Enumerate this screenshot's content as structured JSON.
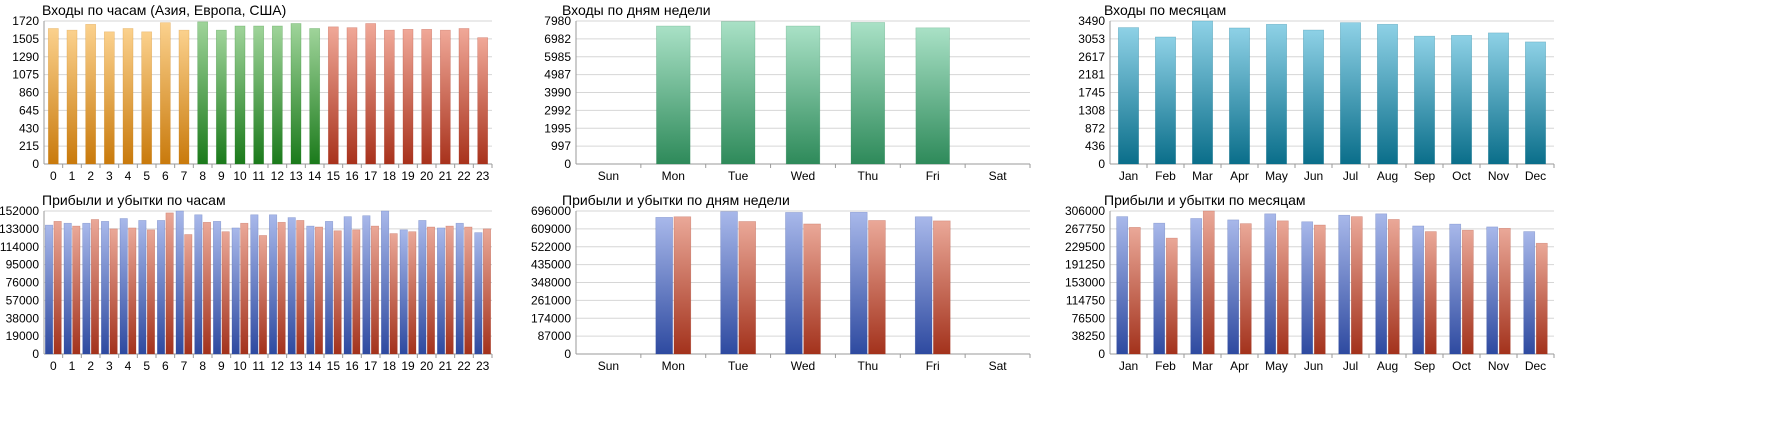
{
  "palette": {
    "orange": [
      "#fbd18d",
      "#c97a0c"
    ],
    "green": [
      "#9fd49a",
      "#1b7a1b"
    ],
    "salmon": [
      "#f0a898",
      "#a8321c"
    ],
    "mint": [
      "#a9e1c6",
      "#2e8a5a"
    ],
    "teal": [
      "#8ed1e6",
      "#0a6e8a"
    ],
    "blue": [
      "#a8b8ea",
      "#2e4aa0"
    ],
    "red": [
      "#eaa898",
      "#a3321c"
    ]
  },
  "chart_data": [
    {
      "id": "hourly-logins",
      "type": "bar",
      "title": "Входы по часам (Азия, Европа, США)",
      "categories": [
        "0",
        "1",
        "2",
        "3",
        "4",
        "5",
        "6",
        "7",
        "8",
        "9",
        "10",
        "11",
        "12",
        "13",
        "14",
        "15",
        "16",
        "17",
        "18",
        "19",
        "20",
        "21",
        "22",
        "23"
      ],
      "series": [
        {
          "values": [
            1630,
            1610,
            1680,
            1590,
            1630,
            1590,
            1700,
            1610,
            1710,
            1610,
            1660,
            1660,
            1660,
            1690,
            1630,
            1650,
            1640,
            1690,
            1610,
            1620,
            1620,
            1610,
            1630,
            1520
          ],
          "colors": [
            "orange",
            "orange",
            "orange",
            "orange",
            "orange",
            "orange",
            "orange",
            "orange",
            "green",
            "green",
            "green",
            "green",
            "green",
            "green",
            "green",
            "salmon",
            "salmon",
            "salmon",
            "salmon",
            "salmon",
            "salmon",
            "salmon",
            "salmon",
            "salmon"
          ]
        }
      ],
      "yticks": [
        "0",
        "215",
        "430",
        "645",
        "860",
        "1075",
        "1290",
        "1505",
        "1720"
      ],
      "ylim": [
        0,
        1720
      ]
    },
    {
      "id": "weekday-logins",
      "type": "bar",
      "title": "Входы по дням недели",
      "categories": [
        "Sun",
        "Mon",
        "Tue",
        "Wed",
        "Thu",
        "Fri",
        "Sat"
      ],
      "series": [
        {
          "values": [
            0,
            7700,
            7950,
            7700,
            7900,
            7600,
            0
          ],
          "colors": [
            "mint"
          ]
        }
      ],
      "yticks": [
        "0",
        "997",
        "1995",
        "2992",
        "3990",
        "4987",
        "5985",
        "6982",
        "7980"
      ],
      "ylim": [
        0,
        7980
      ]
    },
    {
      "id": "monthly-logins",
      "type": "bar",
      "title": "Входы по месяцам",
      "categories": [
        "Jan",
        "Feb",
        "Mar",
        "Apr",
        "May",
        "Jun",
        "Jul",
        "Aug",
        "Sep",
        "Oct",
        "Nov",
        "Dec"
      ],
      "series": [
        {
          "values": [
            3330,
            3100,
            3490,
            3320,
            3410,
            3270,
            3450,
            3410,
            3120,
            3140,
            3200,
            2980
          ],
          "colors": [
            "teal"
          ]
        }
      ],
      "yticks": [
        "0",
        "436",
        "872",
        "1308",
        "1745",
        "2181",
        "2617",
        "3053",
        "3490"
      ],
      "ylim": [
        0,
        3490
      ]
    },
    {
      "id": "hourly-pnl",
      "type": "bar",
      "title": "Прибыли и убытки по часам",
      "categories": [
        "0",
        "1",
        "2",
        "3",
        "4",
        "5",
        "6",
        "7",
        "8",
        "9",
        "10",
        "11",
        "12",
        "13",
        "14",
        "15",
        "16",
        "17",
        "18",
        "19",
        "20",
        "21",
        "22",
        "23"
      ],
      "series": [
        {
          "values": [
            137000,
            139000,
            139000,
            141000,
            144000,
            142000,
            142000,
            152000,
            148000,
            141000,
            134000,
            148000,
            148000,
            145000,
            136000,
            141000,
            146000,
            147000,
            152000,
            132000,
            142000,
            134000,
            139000,
            129000
          ],
          "colors": [
            "blue"
          ]
        },
        {
          "values": [
            141000,
            136000,
            143000,
            133000,
            134000,
            132000,
            150000,
            127000,
            140000,
            130000,
            139000,
            126000,
            140000,
            142000,
            135000,
            131000,
            132000,
            136000,
            128000,
            130000,
            135000,
            136000,
            135000,
            133000
          ],
          "colors": [
            "red"
          ]
        }
      ],
      "yticks": [
        "0",
        "19000",
        "38000",
        "57000",
        "76000",
        "95000",
        "114000",
        "133000",
        "152000"
      ],
      "ylim": [
        0,
        152000
      ]
    },
    {
      "id": "weekday-pnl",
      "type": "bar",
      "title": "Прибыли и убытки по дням недели",
      "categories": [
        "Sun",
        "Mon",
        "Tue",
        "Wed",
        "Thu",
        "Fri",
        "Sat"
      ],
      "series": [
        {
          "values": [
            0,
            665000,
            693000,
            689000,
            690000,
            668000,
            0
          ],
          "colors": [
            "blue"
          ]
        },
        {
          "values": [
            0,
            668000,
            645000,
            633000,
            650000,
            648000,
            0
          ],
          "colors": [
            "red"
          ]
        }
      ],
      "yticks": [
        "0",
        "87000",
        "174000",
        "261000",
        "348000",
        "435000",
        "522000",
        "609000",
        "696000"
      ],
      "ylim": [
        0,
        696000
      ]
    },
    {
      "id": "monthly-pnl",
      "type": "bar",
      "title": "Прибыли и убытки по месяцам",
      "categories": [
        "Jan",
        "Feb",
        "Mar",
        "Apr",
        "May",
        "Jun",
        "Jul",
        "Aug",
        "Sep",
        "Oct",
        "Nov",
        "Dec"
      ],
      "series": [
        {
          "values": [
            294000,
            280000,
            290000,
            287000,
            300000,
            283000,
            297000,
            300000,
            274000,
            278000,
            272000,
            262000
          ],
          "colors": [
            "blue"
          ]
        },
        {
          "values": [
            271000,
            248000,
            306000,
            279000,
            285000,
            276000,
            294000,
            288000,
            262000,
            265000,
            269000,
            237000
          ],
          "colors": [
            "red"
          ]
        }
      ],
      "yticks": [
        "0",
        "38250",
        "76500",
        "114750",
        "153000",
        "191250",
        "229500",
        "267750",
        "306000"
      ],
      "ylim": [
        0,
        306000
      ]
    }
  ]
}
